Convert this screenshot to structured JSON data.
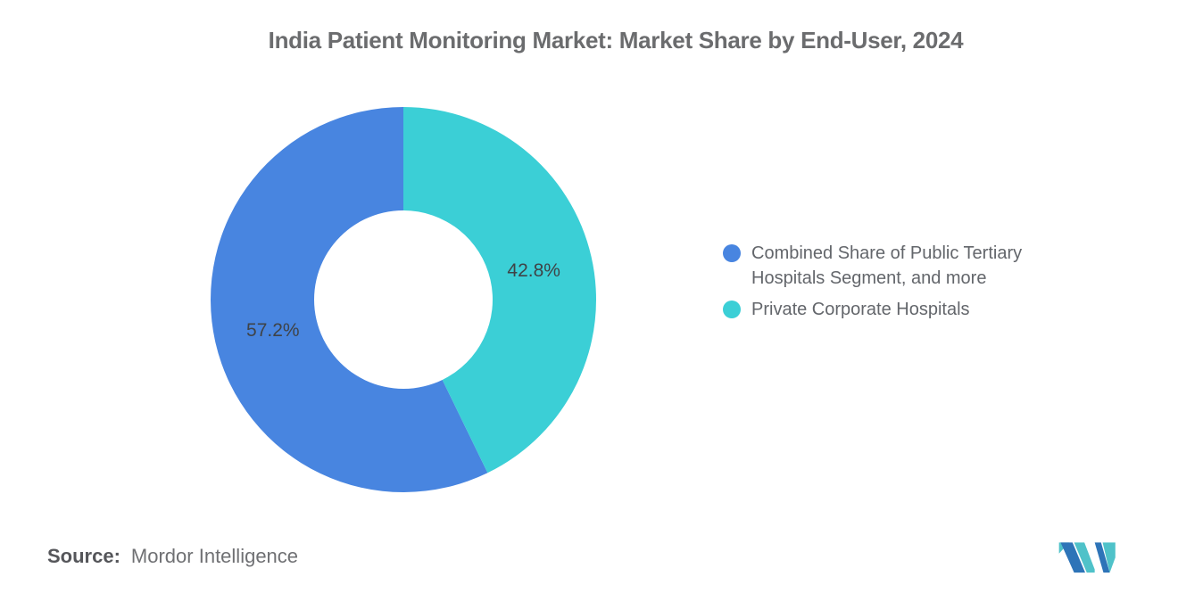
{
  "header": {
    "title": "India Patient Monitoring Market: Market Share by End-User, 2024"
  },
  "chart_data": {
    "type": "pie",
    "subtype": "donut",
    "title": "India Patient Monitoring Market: Market Share by End-User, 2024",
    "units": "percent",
    "direction": "clockwise",
    "start_angle_deg": 154.08,
    "slices": [
      {
        "name": "Combined Share of Public Tertiary Hospitals Segment, and more",
        "value": 57.2,
        "data_label": "57.2%",
        "color": "#4885E0"
      },
      {
        "name": "Private Corporate Hospitals",
        "value": 42.8,
        "data_label": "42.8%",
        "color": "#3BCFD6"
      }
    ],
    "legend_position": "right",
    "data_label_color": "#3F4347"
  },
  "legend": {
    "items": [
      {
        "label": "Combined Share of Public Tertiary Hospitals Segment, and more",
        "color": "#4885E0"
      },
      {
        "label": "Private Corporate Hospitals",
        "color": "#3BCFD6"
      }
    ]
  },
  "source": {
    "label": "Source:",
    "value": "Mordor Intelligence"
  },
  "logo": {
    "name": "mordor-intelligence-logo",
    "teal": "#4FC2C9",
    "blue": "#2E74B8"
  }
}
